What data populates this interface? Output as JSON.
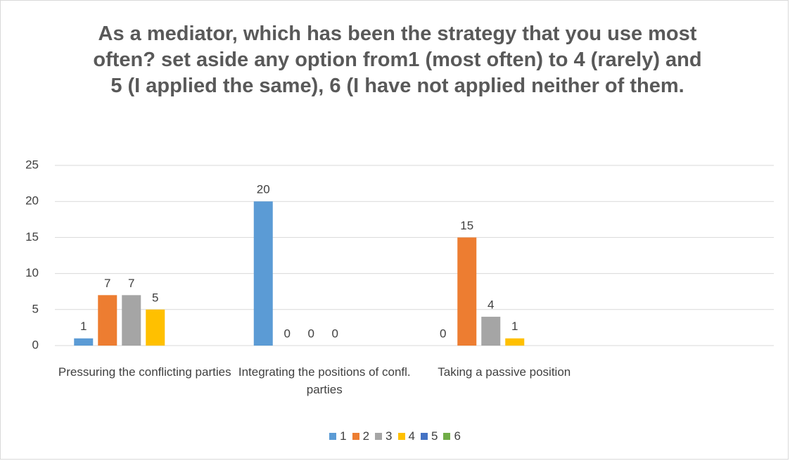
{
  "chart_data": {
    "type": "bar",
    "title": "As a mediator, which has been the strategy that you use most often? set aside any option from1 (most often) to 4 (rarely) and 5 (I applied the same), 6 (I have not applied neither of them.",
    "categories": [
      "Pressuring the conflicting parties",
      "Integrating the positions of confl. parties",
      "Taking a passive position",
      null
    ],
    "series": [
      {
        "name": "1",
        "color": "#5b9bd5",
        "values": [
          1,
          20,
          0,
          null
        ]
      },
      {
        "name": "2",
        "color": "#ed7d31",
        "values": [
          7,
          0,
          15,
          null
        ]
      },
      {
        "name": "3",
        "color": "#a5a5a5",
        "values": [
          7,
          0,
          4,
          null
        ]
      },
      {
        "name": "4",
        "color": "#ffc000",
        "values": [
          5,
          0,
          1,
          null
        ]
      },
      {
        "name": "5",
        "color": "#4472c4",
        "values": [
          null,
          null,
          null,
          null
        ]
      },
      {
        "name": "6",
        "color": "#70ad47",
        "values": [
          null,
          null,
          null,
          null
        ]
      }
    ],
    "ylim": [
      0,
      25
    ],
    "yticks": [
      0,
      5,
      10,
      15,
      20,
      25
    ],
    "grid": true,
    "legend": "bottom"
  }
}
